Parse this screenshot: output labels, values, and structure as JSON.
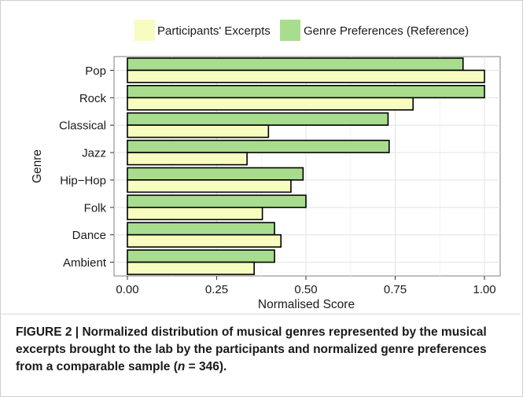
{
  "chart_data": {
    "type": "bar",
    "orientation": "horizontal",
    "categories": [
      "Pop",
      "Rock",
      "Classical",
      "Jazz",
      "Hip−Hop",
      "Folk",
      "Dance",
      "Ambient"
    ],
    "series": [
      {
        "name": "Participants' Excerpts",
        "color": "#f7fcc0",
        "values": [
          1.0,
          0.8,
          0.395,
          0.335,
          0.458,
          0.378,
          0.43,
          0.355
        ]
      },
      {
        "name": "Genre Preferences (Reference)",
        "color": "#a8dd8e",
        "values": [
          0.94,
          1.0,
          0.73,
          0.733,
          0.492,
          0.5,
          0.412,
          0.412
        ]
      }
    ],
    "xlabel": "Normalised Score",
    "ylabel": "Genre",
    "xlim": [
      0,
      1.03
    ],
    "xticks": [
      "0.00",
      "0.25",
      "0.50",
      "0.75",
      "1.00"
    ],
    "grid": true,
    "legend_position": "top"
  },
  "caption": {
    "label": "FIGURE 2 | ",
    "text_before_n": "Normalized distribution of musical genres represented by the musical excerpts brought to the lab by the participants and normalized genre preferences from a comparable sample (",
    "n_symbol": "n",
    "text_after_n": " = 346)."
  }
}
